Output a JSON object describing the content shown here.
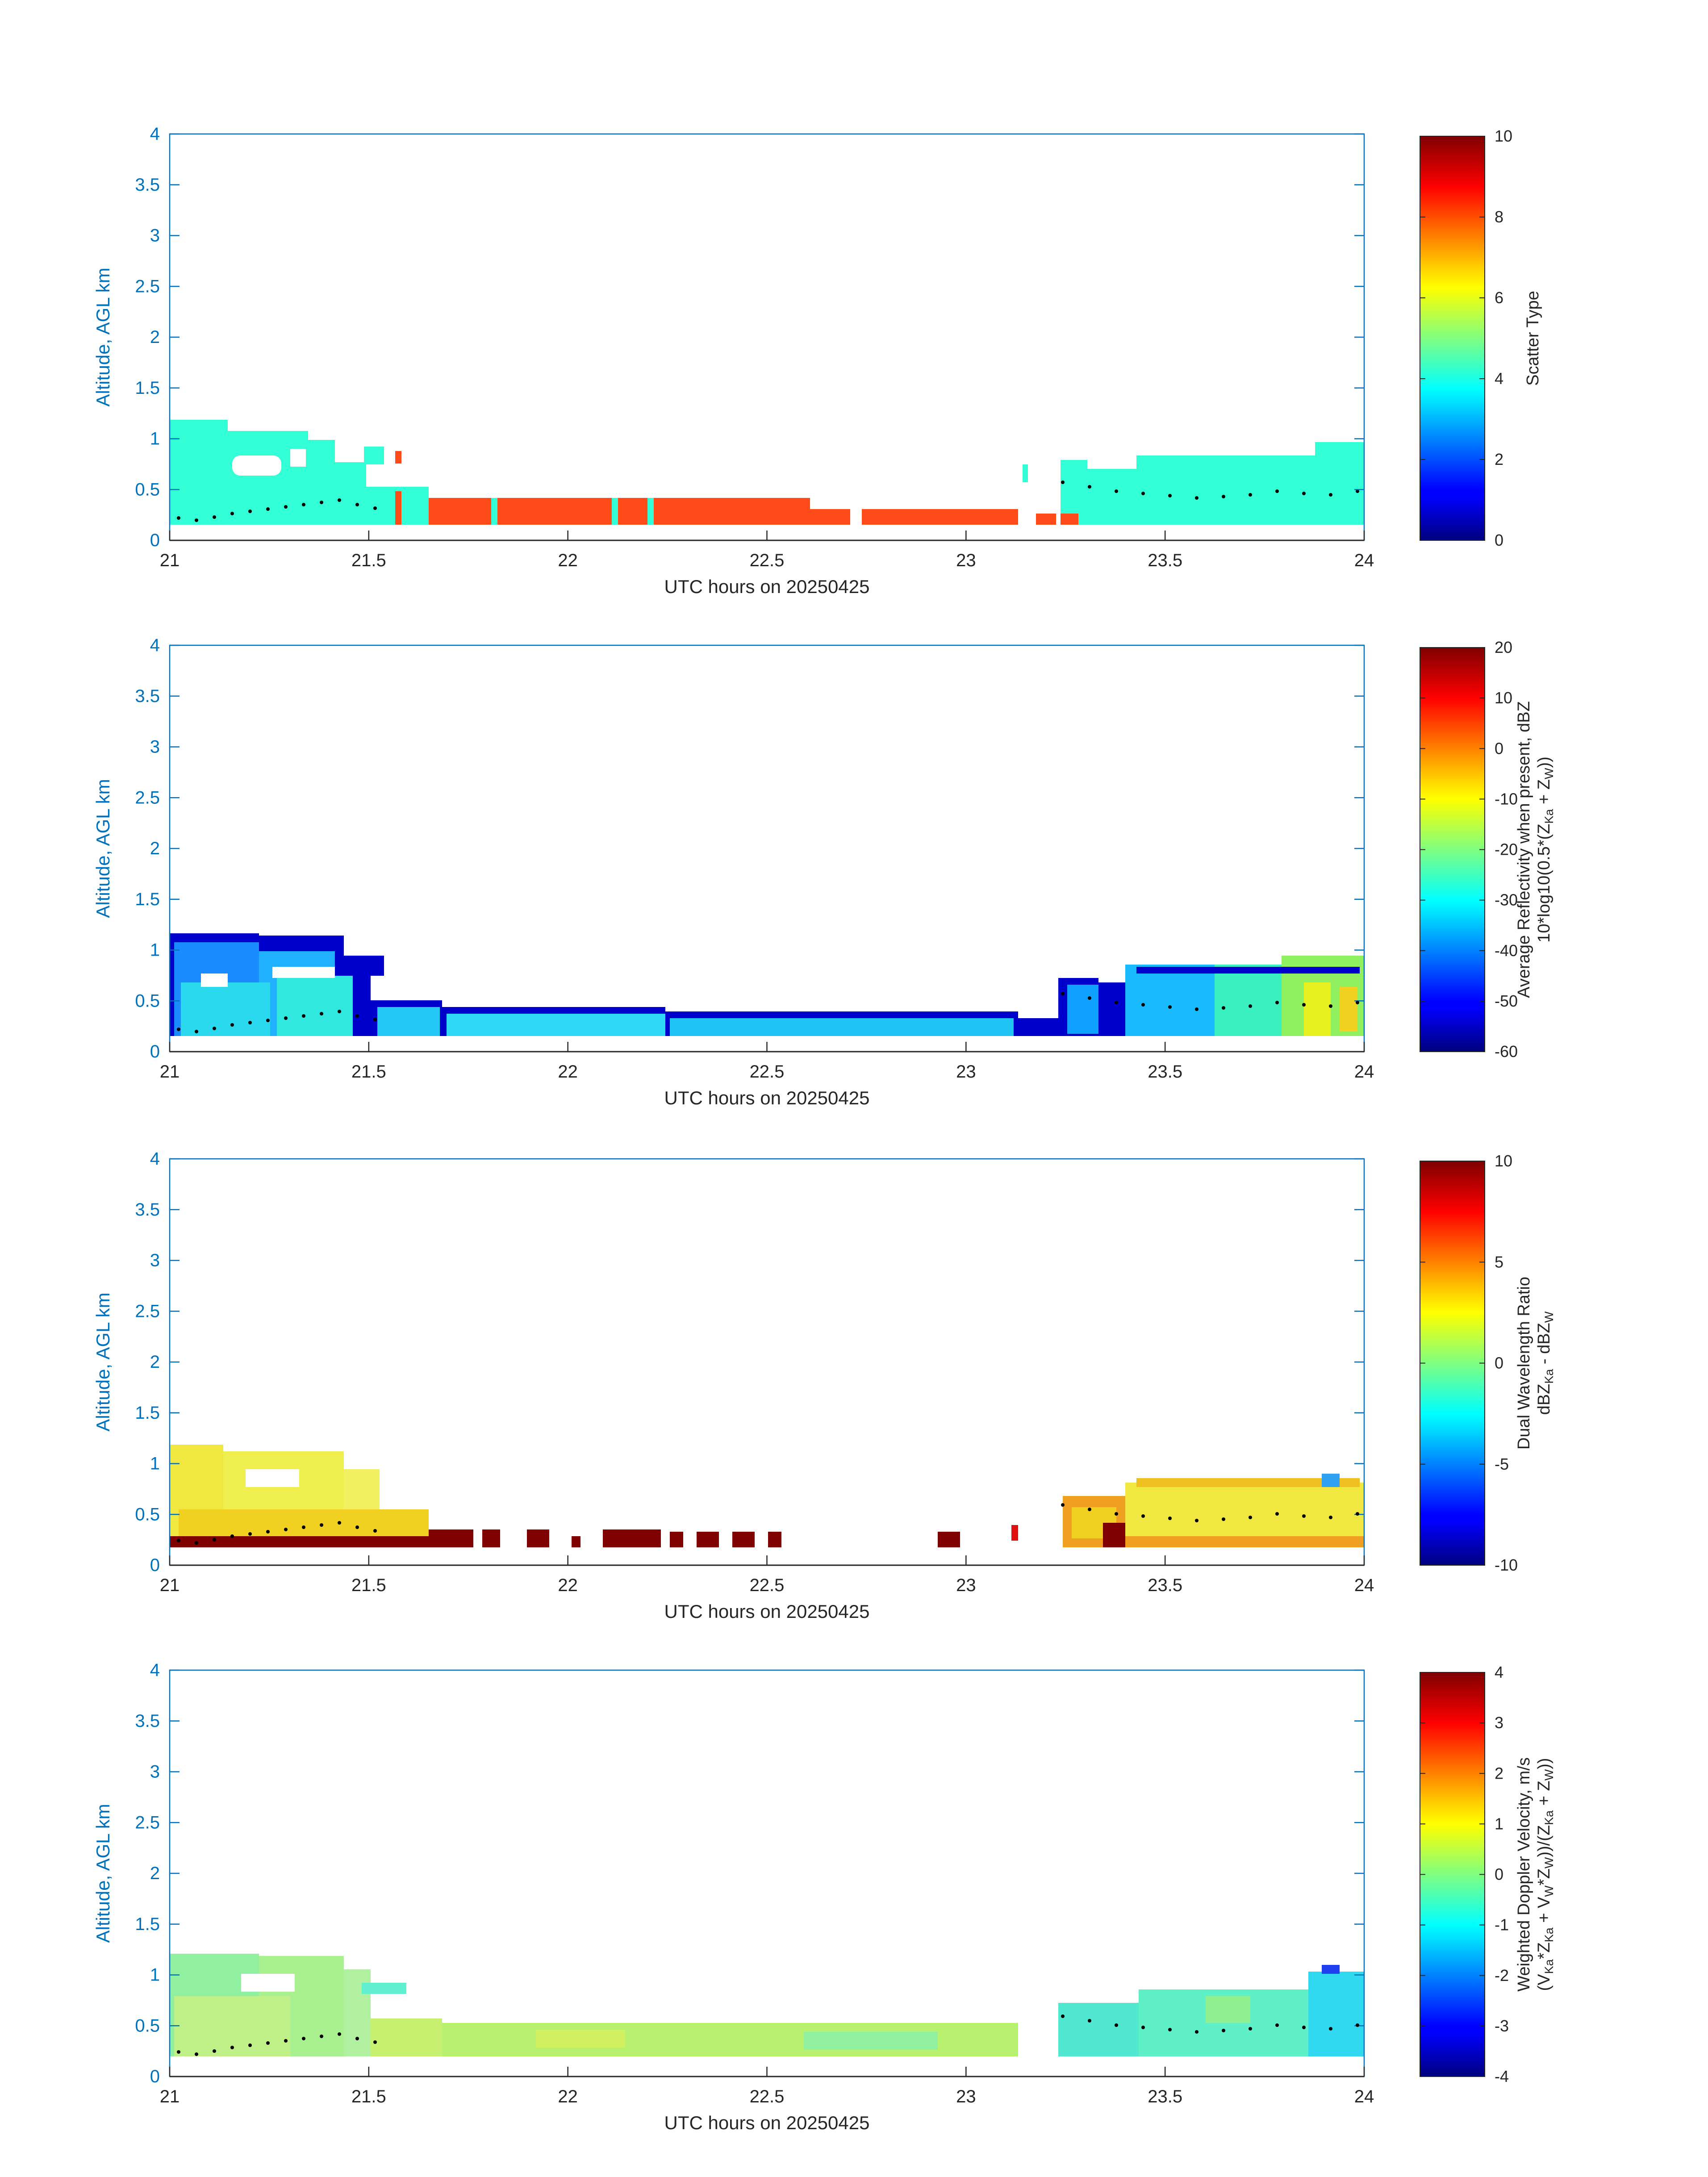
{
  "figure": {
    "x_axis_label": "UTC hours on 20250425",
    "y_axis_label": "Altitude, AGL km",
    "x_ticks": [
      "21",
      "21.5",
      "22",
      "22.5",
      "23",
      "23.5",
      "24"
    ],
    "y_ticks": [
      "0",
      "0.5",
      "1",
      "1.5",
      "2",
      "2.5",
      "3",
      "3.5",
      "4"
    ]
  },
  "chart_data": [
    {
      "type": "heatmap",
      "title": "Scatter Type",
      "xlabel": "UTC hours on 20250425",
      "ylabel": "Altitude, AGL km",
      "xlim": [
        21,
        24
      ],
      "ylim": [
        0,
        4
      ],
      "colorbar": {
        "label": "Scatter Type",
        "range": [
          0,
          10
        ],
        "ticks": [
          "0",
          "2",
          "4",
          "6",
          "8",
          "10"
        ],
        "colormap": "jet"
      },
      "layers": [
        {
          "x": [
            21.0,
            21.65
          ],
          "y": [
            0.2,
            1.0
          ],
          "value": 3.5
        },
        {
          "x": [
            21.65,
            23.28
          ],
          "y": [
            0.2,
            0.35
          ],
          "value": 8.5
        },
        {
          "x": [
            23.28,
            24.0
          ],
          "y": [
            0.2,
            0.9
          ],
          "value": 3.5
        }
      ],
      "series_markers": "black dots, cloud base height"
    },
    {
      "type": "heatmap",
      "title": "Average Reflectivity when present, dBZ",
      "xlabel": "UTC hours on 20250425",
      "ylabel": "Altitude, AGL km",
      "xlim": [
        21,
        24
      ],
      "ylim": [
        0,
        4
      ],
      "colorbar": {
        "label_line1": "Average Reflectivity when present, dBZ",
        "label_line2_a": "10*log10(0.5*(Z",
        "label_line2_sub1": "Ka",
        "label_line2_b": " + Z",
        "label_line2_sub2": "W",
        "label_line2_c": "))",
        "range": [
          -60,
          20
        ],
        "ticks": [
          "-60",
          "-50",
          "-40",
          "-30",
          "-20",
          "-10",
          "0",
          "10",
          "20"
        ],
        "colormap": "jet"
      },
      "layers": [
        {
          "x": [
            21.0,
            21.65
          ],
          "y": [
            0.2,
            1.15
          ],
          "value": -35
        },
        {
          "x": [
            21.65,
            23.2
          ],
          "y": [
            0.2,
            0.35
          ],
          "value": -38
        },
        {
          "x": [
            23.2,
            24.0
          ],
          "y": [
            0.2,
            1.0
          ],
          "value": -25
        }
      ],
      "series_markers": "black dots, cloud base height"
    },
    {
      "type": "heatmap",
      "title": "Dual Wavelength Ratio",
      "xlabel": "UTC hours on 20250425",
      "ylabel": "Altitude, AGL km",
      "xlim": [
        21,
        24
      ],
      "ylim": [
        0,
        4
      ],
      "colorbar": {
        "label_line1": "Dual Wavelength Ratio",
        "label_line2_a": "dBZ",
        "label_line2_sub1": "Ka",
        "label_line2_b": " - dBZ",
        "label_line2_sub2": "W",
        "range": [
          -10,
          10
        ],
        "ticks": [
          "-10",
          "-5",
          "0",
          "5",
          "10"
        ],
        "colormap": "jet"
      },
      "layers": [
        {
          "x": [
            21.0,
            21.6
          ],
          "y": [
            0.25,
            1.2
          ],
          "value": 2
        },
        {
          "x": [
            21.6,
            23.0
          ],
          "y": [
            0.25,
            0.35
          ],
          "value": 10
        },
        {
          "x": [
            23.25,
            24.0
          ],
          "y": [
            0.25,
            1.0
          ],
          "value": 2
        }
      ],
      "series_markers": "black dots, cloud base height"
    },
    {
      "type": "heatmap",
      "title": "Weighted Doppler Velocity, m/s",
      "xlabel": "UTC hours on 20250425",
      "ylabel": "Altitude, AGL km",
      "xlim": [
        21,
        24
      ],
      "ylim": [
        0,
        4
      ],
      "colorbar": {
        "label_line1": "Weighted Doppler Velocity, m/s",
        "label_line2_a": "(V",
        "label_line2_sub1": "Ka",
        "label_line2_b": "*Z",
        "label_line2_sub2": "Ka",
        "label_line2_c": " + V",
        "label_line2_sub3": "W",
        "label_line2_d": "*Z",
        "label_line2_sub4": "W",
        "label_line2_e": "))/(Z",
        "label_line2_sub5": "Ka",
        "label_line2_f": " + Z",
        "label_line2_sub6": "W",
        "label_line2_g": "))",
        "range": [
          -4,
          4
        ],
        "ticks": [
          "-4",
          "-3",
          "-2",
          "-1",
          "0",
          "1",
          "2",
          "3",
          "4"
        ],
        "colormap": "jet"
      },
      "layers": [
        {
          "x": [
            21.0,
            21.6
          ],
          "y": [
            0.2,
            1.15
          ],
          "value": -0.5
        },
        {
          "x": [
            21.6,
            23.2
          ],
          "y": [
            0.2,
            0.4
          ],
          "value": 0
        },
        {
          "x": [
            23.2,
            24.0
          ],
          "y": [
            0.2,
            1.0
          ],
          "value": -1
        }
      ],
      "series_markers": "black dots, cloud base height"
    }
  ]
}
